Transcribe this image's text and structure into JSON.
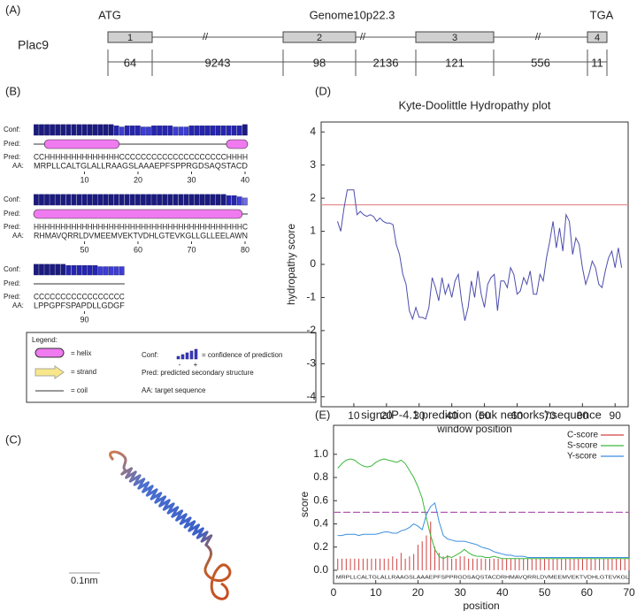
{
  "panel_a": {
    "label": "(A)",
    "gene": "Plac9",
    "start": "ATG",
    "locus": "Genome10p22.3",
    "stop": "TGA",
    "exons": [
      "1",
      "2",
      "3",
      "4"
    ],
    "lengths": [
      64,
      9243,
      98,
      2136,
      121,
      556,
      11
    ]
  },
  "panel_b": {
    "label": "(B)",
    "conf_label": "Conf:",
    "pred_label": "Pred:",
    "aa_label": "AA:",
    "blocks": [
      {
        "conf": [
          9,
          9,
          9,
          9,
          9,
          9,
          9,
          9,
          9,
          9,
          9,
          9,
          9,
          9,
          9,
          8,
          7,
          8,
          8,
          8,
          7,
          7,
          8,
          8,
          8,
          8,
          7,
          7,
          7,
          8,
          8,
          8,
          8,
          8,
          8,
          8,
          8,
          8,
          8,
          9
        ],
        "pred": "CCHHHHHHHHHHHHHHCCCCCCCCCCCCCCCCCCCCHHHH",
        "aa": "MRPLLCALTGLALLRAAGSLAAAEPFSPPRGDSAQSTACD",
        "ticks": [
          10,
          20,
          30,
          40
        ]
      },
      {
        "conf": [
          9,
          9,
          9,
          9,
          9,
          9,
          9,
          9,
          9,
          9,
          9,
          9,
          9,
          9,
          9,
          9,
          9,
          9,
          9,
          9,
          9,
          9,
          9,
          9,
          9,
          9,
          9,
          9,
          9,
          9,
          9,
          9,
          9,
          9,
          9,
          9,
          8,
          8,
          7,
          6
        ],
        "pred": "HHHHHHHHHHHHHHHHHHHHHHHHHHHHHHHHHHHHHHHC",
        "aa": "RHMAVQRRLDVMEEMVEKTVDHLGTEVKGLLGLLEELAWN",
        "ticks": [
          50,
          60,
          70,
          80
        ]
      },
      {
        "conf": [
          9,
          9,
          9,
          9,
          9,
          9,
          8,
          8,
          8,
          8,
          8,
          8,
          7,
          7,
          7,
          7,
          7
        ],
        "pred": "CCCCCCCCCCCCCCCCC",
        "aa": "LPPGPFSPAPDLLGDGF",
        "ticks": [
          90
        ]
      }
    ],
    "legend": {
      "title": "Legend:",
      "helix": "= helix",
      "strand": "= strand",
      "coil": "= coil",
      "conf": "Conf:",
      "conf_desc": "= confidence of prediction",
      "minus": "-",
      "plus": "+",
      "pred": "Pred: predicted secondary structure",
      "aa": "AA: target sequence"
    }
  },
  "panel_c": {
    "label": "(C)",
    "scale": "0.1nm"
  },
  "chart_data": [
    {
      "type": "line",
      "panel": "(D)",
      "title": "Kyte-Doolittle Hydropathy plot",
      "xlabel": "window position",
      "ylabel": "hydropathy score",
      "x": [
        5,
        6,
        7,
        8,
        9,
        10,
        11,
        12,
        13,
        14,
        15,
        16,
        17,
        18,
        19,
        20,
        21,
        22,
        23,
        24,
        25,
        26,
        27,
        28,
        29,
        30,
        31,
        32,
        33,
        34,
        35,
        36,
        37,
        38,
        39,
        40,
        41,
        42,
        43,
        44,
        45,
        46,
        47,
        48,
        49,
        50,
        51,
        52,
        53,
        54,
        55,
        56,
        57,
        58,
        59,
        60,
        61,
        62,
        63,
        64,
        65,
        66,
        67,
        68,
        69,
        70,
        71,
        72,
        73,
        74,
        75,
        76,
        77,
        78,
        79,
        80,
        81,
        82,
        83,
        84,
        85,
        86,
        87,
        88,
        89,
        90,
        91,
        92
      ],
      "values": [
        1.3,
        1.0,
        1.7,
        2.25,
        2.25,
        2.25,
        1.5,
        1.6,
        1.5,
        1.45,
        1.5,
        1.45,
        1.3,
        1.4,
        1.3,
        1.25,
        1.25,
        1.2,
        0.6,
        0.3,
        -0.3,
        -0.6,
        -1.4,
        -1.65,
        -1.3,
        -1.6,
        -1.6,
        -1.65,
        -1.3,
        -0.4,
        -0.7,
        -1.1,
        -0.4,
        -0.9,
        -0.6,
        -1.0,
        -0.5,
        -0.3,
        -1.1,
        -1.7,
        -1.3,
        -0.5,
        -1.0,
        -0.2,
        -0.9,
        -1.3,
        -0.6,
        -0.4,
        -0.3,
        -1.4,
        -0.5,
        -0.5,
        -0.7,
        -0.1,
        -0.3,
        -0.9,
        -0.8,
        -0.4,
        -0.6,
        -0.2,
        -0.9,
        -0.9,
        -0.3,
        -0.5,
        0.2,
        0.7,
        1.3,
        0.5,
        1.1,
        0.4,
        1.5,
        1.3,
        0.3,
        0.8,
        0.6,
        -0.1,
        -0.6,
        -0.3,
        0.1,
        -0.1,
        -0.6,
        -0.7,
        -0.2,
        0.2,
        0.4,
        -0.1,
        0.5,
        -0.1
      ],
      "color": "#4d4dad",
      "threshold": 1.8,
      "threshold_color": "#e89090",
      "xlim": [
        0,
        94
      ],
      "ylim": [
        -4.3,
        4.3
      ],
      "xticks": [
        10,
        20,
        30,
        40,
        50,
        60,
        70,
        80,
        90
      ],
      "yticks": [
        -4,
        -3,
        -2,
        -1,
        0,
        1,
        2,
        3,
        4
      ]
    },
    {
      "type": "line",
      "panel": "(E)",
      "title": "signalP-4.1 prediction (euk netnorks):sequence",
      "xlabel": "position",
      "ylabel": "score",
      "sequence": "MRPLLCALTGLALLRAAGSLAAAEPFSPPRGDSAQSTACDRHMAVQRRLDVMEEMVEKTVDHLGTEVKGL",
      "x": [
        1,
        2,
        3,
        4,
        5,
        6,
        7,
        8,
        9,
        10,
        11,
        12,
        13,
        14,
        15,
        16,
        17,
        18,
        19,
        20,
        21,
        22,
        23,
        24,
        25,
        26,
        27,
        28,
        29,
        30,
        31,
        32,
        33,
        34,
        35,
        36,
        37,
        38,
        39,
        40,
        41,
        42,
        43,
        44,
        45,
        46,
        47,
        48,
        49,
        50,
        51,
        52,
        53,
        54,
        55,
        56,
        57,
        58,
        59,
        60,
        61,
        62,
        63,
        64,
        65,
        66,
        67,
        68,
        69,
        70
      ],
      "series": [
        {
          "name": "C-score",
          "color": "#d04040",
          "style": "stem",
          "values": [
            0.1,
            0.1,
            0.1,
            0.1,
            0.1,
            0.1,
            0.1,
            0.1,
            0.1,
            0.1,
            0.1,
            0.1,
            0.1,
            0.12,
            0.1,
            0.15,
            0.1,
            0.12,
            0.14,
            0.22,
            0.25,
            0.3,
            0.42,
            0.2,
            0.15,
            0.12,
            0.13,
            0.1,
            0.1,
            0.12,
            0.12,
            0.1,
            0.1,
            0.1,
            0.1,
            0.1,
            0.1,
            0.1,
            0.1,
            0.1,
            0.1,
            0.1,
            0.1,
            0.1,
            0.1,
            0.1,
            0.1,
            0.1,
            0.1,
            0.1,
            0.1,
            0.1,
            0.1,
            0.1,
            0.1,
            0.1,
            0.1,
            0.1,
            0.1,
            0.1,
            0.1,
            0.1,
            0.1,
            0.1,
            0.1,
            0.1,
            0.1,
            0.1,
            0.1,
            0.1
          ]
        },
        {
          "name": "S-score",
          "color": "#3cb83c",
          "style": "line",
          "values": [
            0.88,
            0.92,
            0.95,
            0.96,
            0.95,
            0.92,
            0.9,
            0.89,
            0.9,
            0.93,
            0.95,
            0.96,
            0.95,
            0.94,
            0.93,
            0.95,
            0.92,
            0.86,
            0.8,
            0.72,
            0.62,
            0.45,
            0.3,
            0.18,
            0.12,
            0.1,
            0.12,
            0.11,
            0.13,
            0.15,
            0.18,
            0.15,
            0.13,
            0.12,
            0.12,
            0.11,
            0.11,
            0.12,
            0.11,
            0.1,
            0.1,
            0.1,
            0.1,
            0.1,
            0.1,
            0.1,
            0.1,
            0.1,
            0.1,
            0.1,
            0.1,
            0.1,
            0.1,
            0.1,
            0.1,
            0.1,
            0.1,
            0.1,
            0.1,
            0.1,
            0.1,
            0.1,
            0.1,
            0.1,
            0.1,
            0.1,
            0.1,
            0.1,
            0.1,
            0.1
          ]
        },
        {
          "name": "Y-score",
          "color": "#3c8ee0",
          "style": "line",
          "values": [
            0.3,
            0.3,
            0.31,
            0.31,
            0.31,
            0.3,
            0.31,
            0.31,
            0.31,
            0.31,
            0.32,
            0.33,
            0.33,
            0.32,
            0.32,
            0.34,
            0.35,
            0.37,
            0.4,
            0.38,
            0.35,
            0.48,
            0.55,
            0.58,
            0.42,
            0.3,
            0.27,
            0.26,
            0.25,
            0.25,
            0.25,
            0.24,
            0.23,
            0.22,
            0.2,
            0.19,
            0.18,
            0.16,
            0.15,
            0.14,
            0.13,
            0.13,
            0.12,
            0.12,
            0.12,
            0.11,
            0.11,
            0.11,
            0.11,
            0.11,
            0.11,
            0.11,
            0.11,
            0.11,
            0.11,
            0.11,
            0.11,
            0.11,
            0.11,
            0.11,
            0.11,
            0.11,
            0.11,
            0.11,
            0.11,
            0.11,
            0.11,
            0.11,
            0.11,
            0.11
          ]
        }
      ],
      "threshold": 0.5,
      "threshold_color": "#b05ab0",
      "legend": "top-right",
      "xlim": [
        0,
        70
      ],
      "ylim": [
        -0.115,
        1.25
      ],
      "xticks": [
        0,
        10,
        20,
        30,
        40,
        50,
        60,
        70
      ],
      "yticks": [
        {
          "value": 0,
          "label": "0.0"
        },
        0.2,
        0.4,
        0.6,
        0.8,
        {
          "value": 1,
          "label": "1.0"
        }
      ]
    }
  ]
}
